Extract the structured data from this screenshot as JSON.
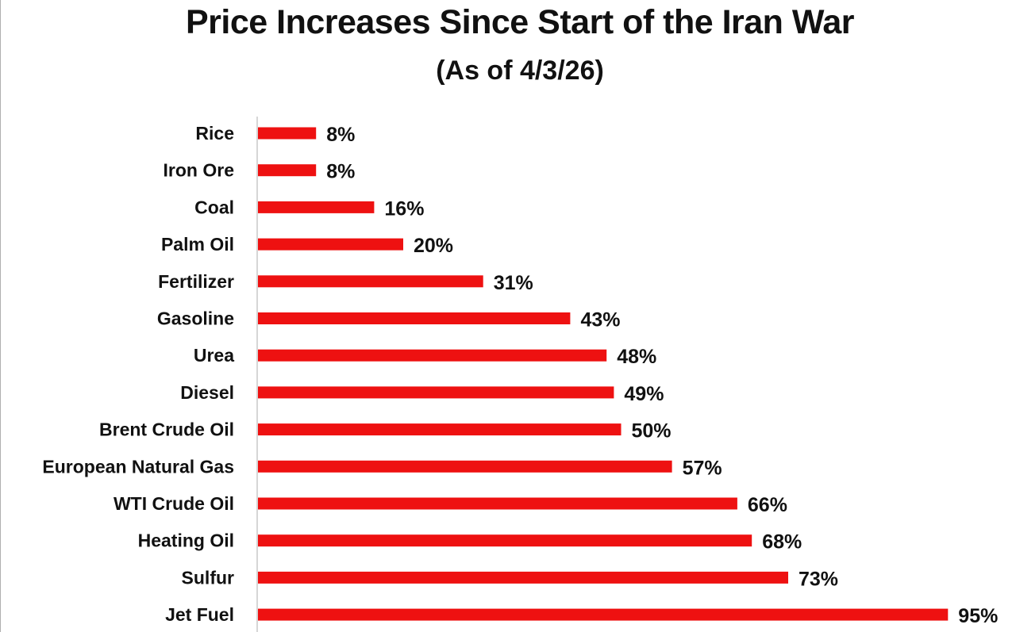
{
  "chart_data": {
    "type": "bar",
    "orientation": "horizontal",
    "title": "Price Increases Since Start of the Iran War",
    "subtitle": "(As of 4/3/26)",
    "categories": [
      "Rice",
      "Iron Ore",
      "Coal",
      "Palm Oil",
      "Fertilizer",
      "Gasoline",
      "Urea",
      "Diesel",
      "Brent Crude Oil",
      "European Natural Gas",
      "WTI Crude Oil",
      "Heating Oil",
      "Sulfur",
      "Jet Fuel"
    ],
    "values": [
      8,
      8,
      16,
      20,
      31,
      43,
      48,
      49,
      50,
      57,
      66,
      68,
      73,
      95
    ],
    "value_labels": [
      "8%",
      "8%",
      "16%",
      "20%",
      "31%",
      "43%",
      "48%",
      "49%",
      "50%",
      "57%",
      "66%",
      "68%",
      "73%",
      "95%"
    ],
    "xlim": [
      0,
      100
    ],
    "grid": false,
    "legend": "none",
    "bar_color": "#ee1111"
  }
}
